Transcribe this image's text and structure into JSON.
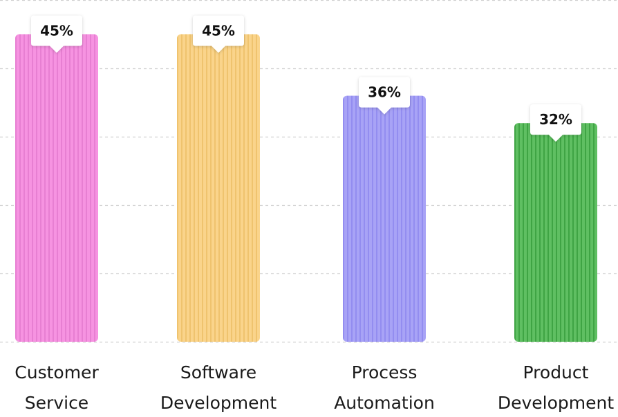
{
  "chart_data": {
    "type": "bar",
    "categories": [
      [
        "Customer",
        "Service"
      ],
      [
        "Software",
        "Development"
      ],
      [
        "Process",
        "Automation"
      ],
      [
        "Product",
        "Development"
      ]
    ],
    "values": [
      45,
      45,
      36,
      32
    ],
    "value_labels": [
      "45%",
      "45%",
      "36%",
      "32%"
    ],
    "colors": [
      "#f693e1",
      "#fad48b",
      "#a8a3f6",
      "#5fbf62"
    ],
    "stripe_colors": [
      "#e77fd2",
      "#efc36e",
      "#938df0",
      "#3fa444"
    ],
    "ylim": [
      0,
      50
    ],
    "grid": true,
    "legend": "none"
  }
}
